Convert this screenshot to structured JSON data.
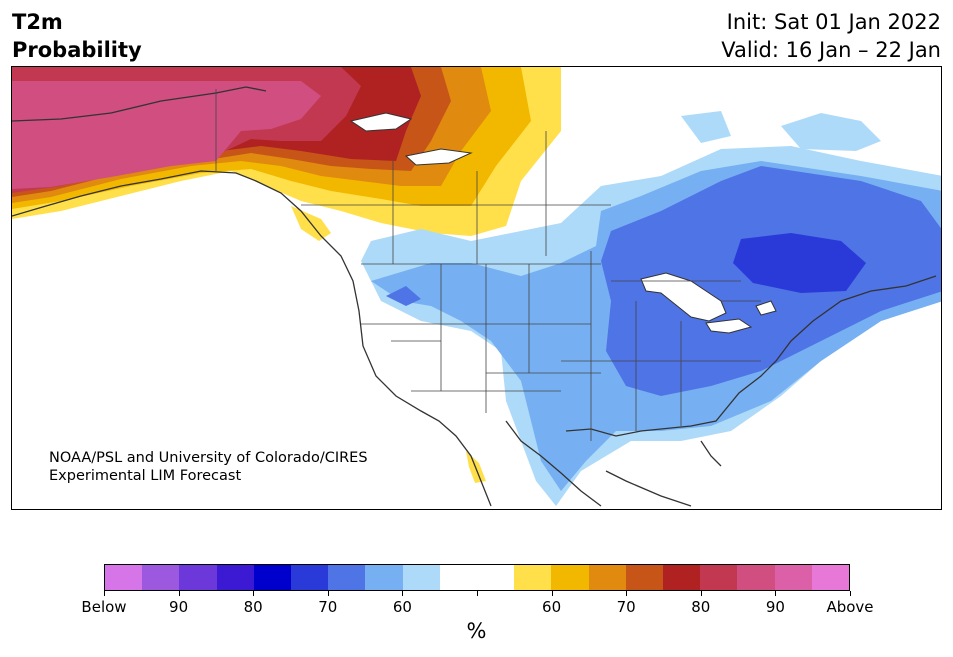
{
  "header": {
    "left_line1": "T2m",
    "left_line2": "Probability",
    "right_line1": "Init: Sat 01 Jan 2022",
    "right_line2": "Valid: 16 Jan – 22 Jan"
  },
  "credit": {
    "line1": "NOAA/PSL and University of Colorado/CIRES",
    "line2": "Experimental LIM Forecast"
  },
  "colorbar": {
    "unit": "%",
    "labels": [
      "Below",
      "90",
      "80",
      "70",
      "60",
      "60",
      "70",
      "80",
      "90",
      "Above"
    ],
    "colors": [
      "#d675e8",
      "#9c58df",
      "#6c38d9",
      "#3c1ad4",
      "#0000cc",
      "#2a3ad8",
      "#4f74e6",
      "#76b0f2",
      "#aedaf9",
      "#ffffff",
      "#ffffff",
      "#ffe04a",
      "#f2b800",
      "#e08a10",
      "#c85518",
      "#b02222",
      "#c23850",
      "#d04e80",
      "#dc60a8",
      "#e878d8"
    ]
  },
  "map": {
    "region": "North America"
  }
}
